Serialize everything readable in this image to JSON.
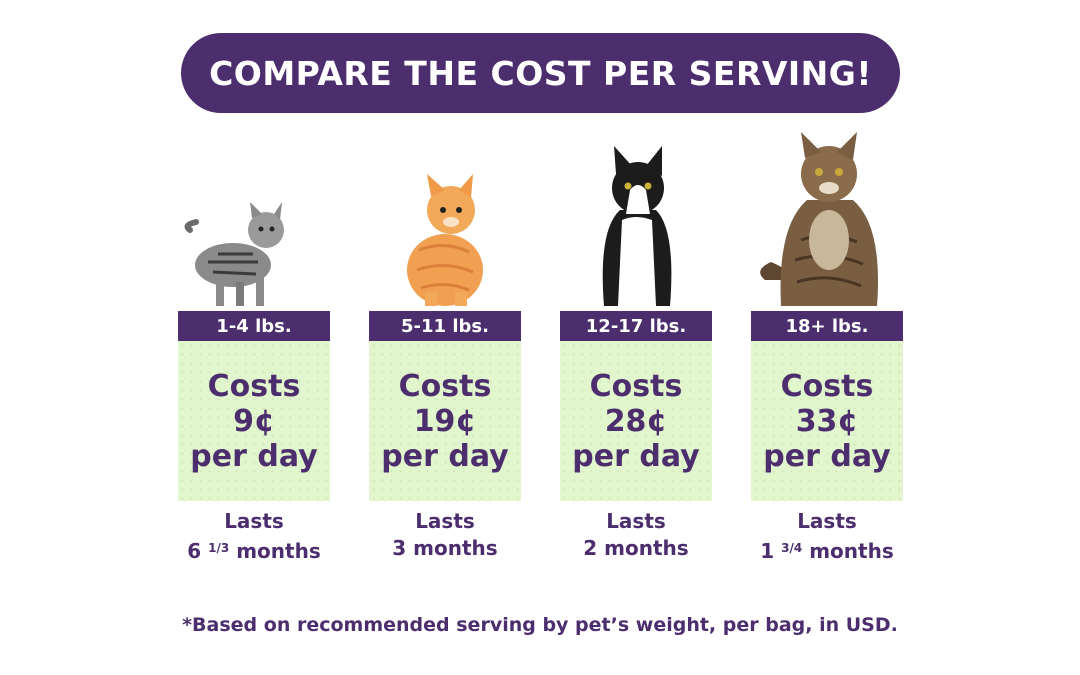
{
  "banner": {
    "title": "COMPARE THE COST PER SERVING!"
  },
  "tiers": [
    {
      "weight": "1-4 lbs.",
      "cost_word": "Costs",
      "cost_value": "9¢",
      "cost_unit": "per day",
      "lasts_word": "Lasts",
      "lasts_whole": "6",
      "lasts_fraction": "1/3",
      "lasts_unit": "months",
      "cat": "tabby-kitten"
    },
    {
      "weight": "5-11 lbs.",
      "cost_word": "Costs",
      "cost_value": "19¢",
      "cost_unit": "per day",
      "lasts_word": "Lasts",
      "lasts_whole": "3",
      "lasts_fraction": "",
      "lasts_unit": "months",
      "cat": "orange-cat"
    },
    {
      "weight": "12-17 lbs.",
      "cost_word": "Costs",
      "cost_value": "28¢",
      "cost_unit": "per day",
      "lasts_word": "Lasts",
      "lasts_whole": "2",
      "lasts_fraction": "",
      "lasts_unit": "months",
      "cat": "tuxedo-cat"
    },
    {
      "weight": "18+ lbs.",
      "cost_word": "Costs",
      "cost_value": "33¢",
      "cost_unit": "per day",
      "lasts_word": "Lasts",
      "lasts_whole": "1",
      "lasts_fraction": "3/4",
      "lasts_unit": "months",
      "cat": "maine-coon-cat"
    }
  ],
  "footnote": "*Based on recommended serving by pet’s weight, per bag, in USD.",
  "colors": {
    "brand_purple": "#4c2e6e",
    "cost_green": "#e2f6cd"
  }
}
